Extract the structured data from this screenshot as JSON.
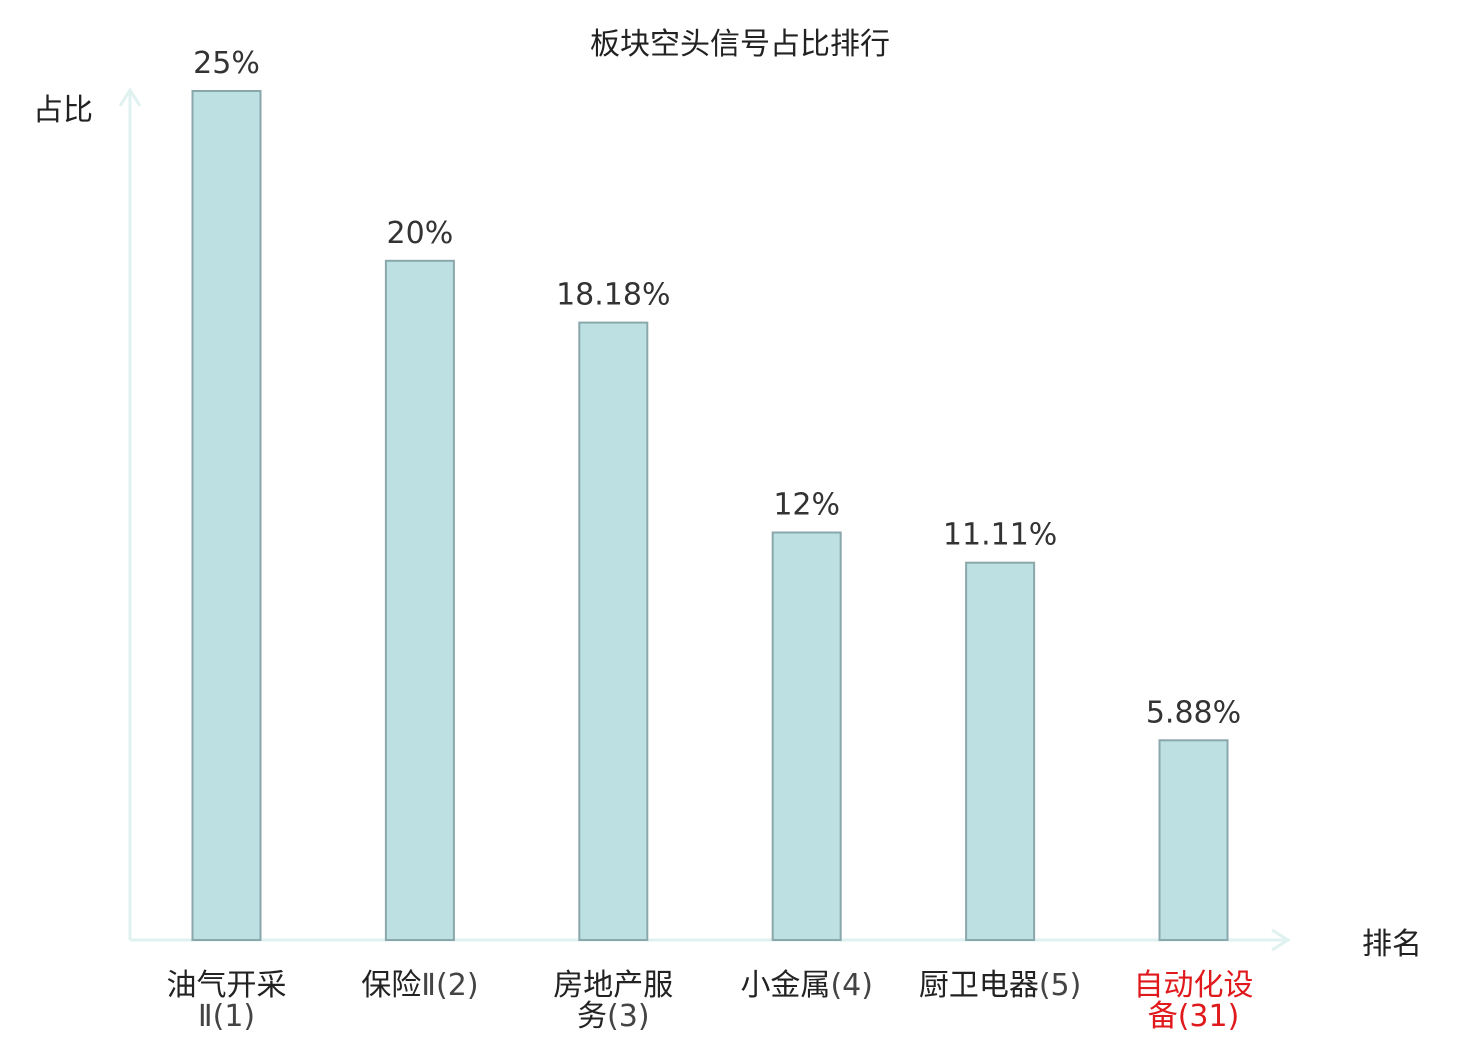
{
  "chart_data": {
    "type": "bar",
    "title": "板块空头信号占比排行",
    "ylabel": "占比",
    "xlabel": "排名",
    "ylim": [
      0,
      25
    ],
    "grid": false,
    "categories": [
      {
        "name": "油气开采Ⅱ",
        "rank": "(1)",
        "line1": "油气开采",
        "line2_prefix": "Ⅱ",
        "line2_suffix": "(1)",
        "highlight": false
      },
      {
        "name": "保险Ⅱ",
        "rank": "(2)",
        "line1": "保险",
        "line1_suffix": "Ⅱ(2)",
        "highlight": false
      },
      {
        "name": "房地产服务",
        "rank": "(3)",
        "line1": "房地产服",
        "line2_prefix": "务",
        "line2_suffix": "(3)",
        "highlight": false
      },
      {
        "name": "小金属",
        "rank": "(4)",
        "line1": "小金属",
        "line1_suffix": "(4)",
        "highlight": false
      },
      {
        "name": "厨卫电器",
        "rank": "(5)",
        "line1": "厨卫电器",
        "line1_suffix": "(5)",
        "highlight": false
      },
      {
        "name": "自动化设备",
        "rank": "(31)",
        "line1": "自动化设",
        "line2_prefix": "备",
        "line2_suffix": "(31)",
        "highlight": true
      }
    ],
    "values": [
      25,
      20,
      18.18,
      12,
      11.11,
      5.88
    ],
    "value_labels": [
      "25%",
      "20%",
      "18.18%",
      "12%",
      "11.11%",
      "5.88%"
    ],
    "colors": {
      "bar_fill": "#bde0e3",
      "bar_stroke": "#8aa7ab",
      "axis": "#dff2f0",
      "text": "#222222",
      "value_label": "#333333",
      "rank_text": "#444444",
      "highlight": "#e0191c"
    }
  }
}
